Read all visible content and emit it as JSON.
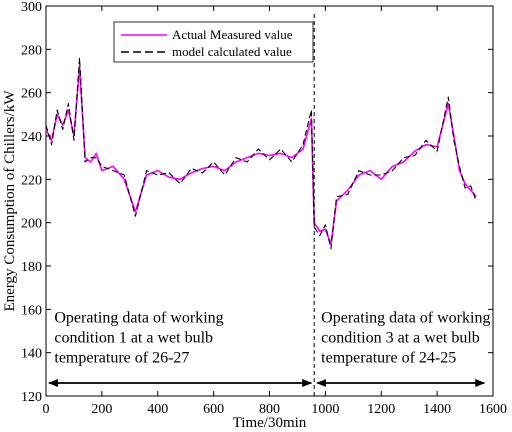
{
  "chart_data": {
    "type": "line",
    "xlabel": "Time/30min",
    "ylabel": "Energy Consumption of Chillers/kW",
    "xlim": [
      0,
      1600
    ],
    "ylim": [
      120,
      300
    ],
    "x_ticks": [
      0,
      200,
      400,
      600,
      800,
      1000,
      1200,
      1400,
      1600
    ],
    "y_ticks": [
      120,
      140,
      160,
      180,
      200,
      220,
      240,
      260,
      280,
      300
    ],
    "x_tick_labels": [
      "0",
      "200",
      "400",
      "600",
      "800",
      "1000",
      "1200",
      "1400",
      "1600"
    ],
    "y_tick_labels": [
      "120",
      "140",
      "160",
      "180",
      "200",
      "220",
      "240",
      "260",
      "280",
      "300"
    ],
    "grid": false,
    "legend_position": "top-center",
    "series": [
      {
        "name": "Actual Measured value",
        "color": "#ff00ff",
        "style": "solid",
        "x": [
          0,
          20,
          40,
          60,
          80,
          100,
          120,
          140,
          160,
          180,
          200,
          240,
          280,
          320,
          360,
          400,
          440,
          480,
          520,
          560,
          600,
          640,
          680,
          720,
          760,
          800,
          840,
          880,
          920,
          950,
          960,
          980,
          1000,
          1020,
          1040,
          1080,
          1120,
          1160,
          1200,
          1240,
          1280,
          1320,
          1360,
          1400,
          1440,
          1460,
          1480,
          1500,
          1520,
          1540
        ],
        "y": [
          243,
          238,
          250,
          245,
          252,
          240,
          272,
          230,
          228,
          232,
          224,
          226,
          220,
          205,
          222,
          224,
          221,
          220,
          223,
          225,
          226,
          224,
          228,
          230,
          232,
          231,
          232,
          230,
          234,
          248,
          200,
          196,
          197,
          190,
          210,
          215,
          222,
          224,
          220,
          226,
          228,
          233,
          236,
          235,
          255,
          240,
          224,
          218,
          215,
          212
        ]
      },
      {
        "name": "model calculated value",
        "color": "#000000",
        "style": "dashed",
        "x": [
          0,
          20,
          40,
          60,
          80,
          100,
          120,
          140,
          160,
          180,
          200,
          240,
          280,
          320,
          360,
          400,
          440,
          480,
          520,
          560,
          600,
          640,
          680,
          720,
          760,
          800,
          840,
          880,
          920,
          950,
          960,
          980,
          1000,
          1020,
          1040,
          1080,
          1120,
          1160,
          1200,
          1240,
          1280,
          1320,
          1360,
          1400,
          1440,
          1460,
          1480,
          1500,
          1520,
          1540
        ],
        "y": [
          245,
          236,
          252,
          243,
          255,
          238,
          276,
          228,
          230,
          230,
          226,
          224,
          222,
          203,
          224,
          222,
          223,
          218,
          225,
          223,
          228,
          222,
          230,
          228,
          234,
          229,
          234,
          228,
          236,
          252,
          198,
          194,
          199,
          188,
          212,
          213,
          224,
          222,
          222,
          224,
          230,
          231,
          238,
          233,
          258,
          238,
          226,
          216,
          217,
          210
        ]
      }
    ],
    "annotations": [
      {
        "lines": [
          "Operating data of working",
          "condition 1 at a wet bulb",
          "temperature of 26-27"
        ],
        "range": [
          0,
          960
        ]
      },
      {
        "lines": [
          "Operating data of working",
          "condition 3 at a wet bulb",
          "temperature of 24-25"
        ],
        "range": [
          960,
          1540
        ]
      }
    ],
    "divider_x": 960,
    "arrow_y": 126
  }
}
